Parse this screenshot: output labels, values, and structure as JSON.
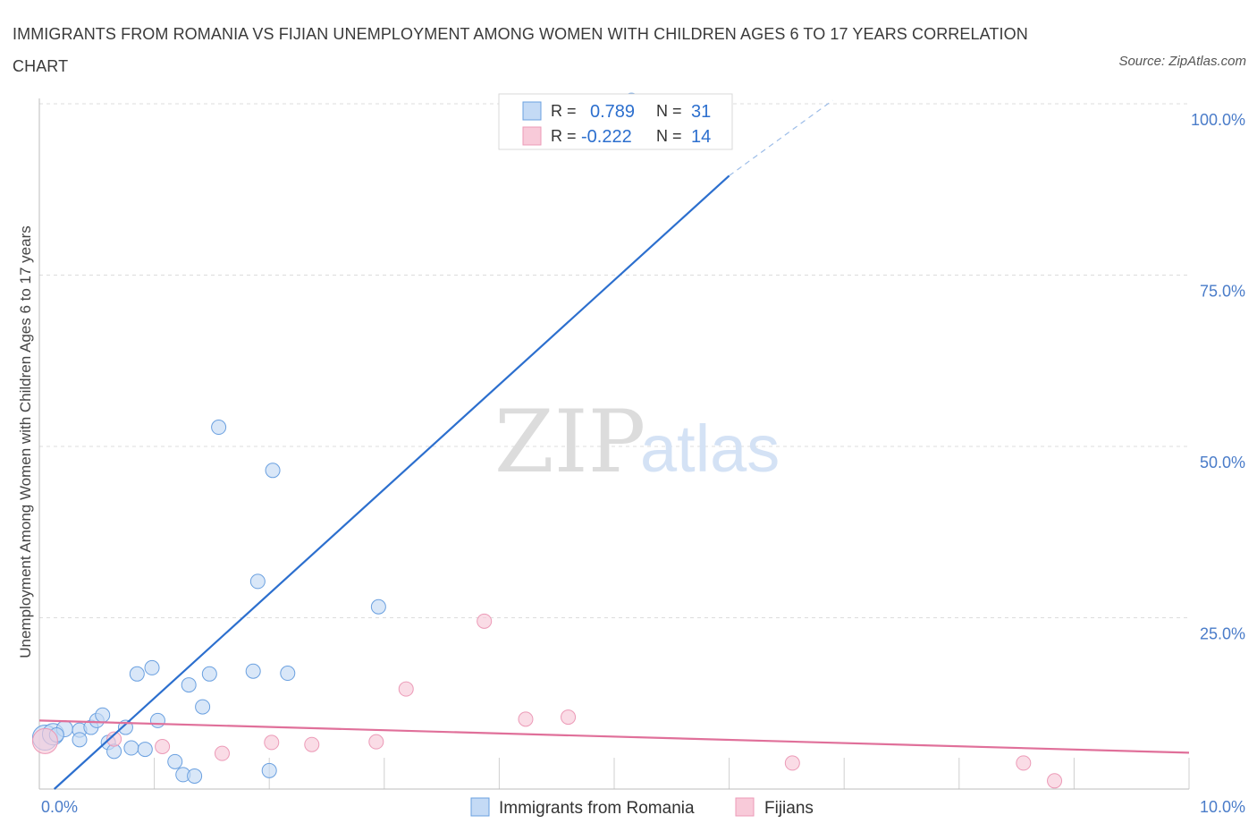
{
  "chart_data": {
    "type": "scatter",
    "title": "IMMIGRANTS FROM ROMANIA VS FIJIAN UNEMPLOYMENT AMONG WOMEN WITH CHILDREN AGES 6 TO 17 YEARS CORRELATION CHART",
    "source": "Source: ZipAtlas.com",
    "ylabel": "Unemployment Among Women with Children Ages 6 to 17 years",
    "xlim": [
      0,
      10
    ],
    "ylim": [
      0,
      100
    ],
    "x_tick_labels": [
      "0.0%",
      "10.0%"
    ],
    "y_ticks": [
      {
        "value": 25,
        "label": "25.0%"
      },
      {
        "value": 50,
        "label": "50.0%"
      },
      {
        "value": 75,
        "label": "75.0%"
      },
      {
        "value": 100,
        "label": "100.0%"
      }
    ],
    "legend": {
      "position": "top-center",
      "r_label": "R =",
      "n_label": "N =",
      "entries": [
        {
          "r": "0.789",
          "n": "31"
        },
        {
          "r": "-0.222",
          "n": "14"
        }
      ]
    },
    "series": [
      {
        "name": "Immigrants from Romania",
        "color": "#6aa0e0",
        "fill": "#c4daf5",
        "line_color": "#2c6fce",
        "trend": {
          "x0": 0.13,
          "y0": 0,
          "x1": 6.0,
          "y1": 89.5,
          "dash_to_x": 6.9,
          "dash_to_y": 100.5
        },
        "points": [
          {
            "x": 0.05,
            "y": 7.5,
            "s": 14
          },
          {
            "x": 0.12,
            "y": 8.0,
            "s": 12
          },
          {
            "x": 0.22,
            "y": 8.8,
            "s": 9
          },
          {
            "x": 0.35,
            "y": 8.6,
            "s": 8
          },
          {
            "x": 0.35,
            "y": 7.2,
            "s": 8
          },
          {
            "x": 0.45,
            "y": 9.0,
            "s": 8
          },
          {
            "x": 0.5,
            "y": 10.0,
            "s": 8
          },
          {
            "x": 0.55,
            "y": 10.8,
            "s": 8
          },
          {
            "x": 0.6,
            "y": 6.8,
            "s": 8
          },
          {
            "x": 0.65,
            "y": 5.5,
            "s": 8
          },
          {
            "x": 0.75,
            "y": 9.0,
            "s": 8
          },
          {
            "x": 0.8,
            "y": 6.0,
            "s": 8
          },
          {
            "x": 0.85,
            "y": 16.8,
            "s": 8
          },
          {
            "x": 0.92,
            "y": 5.8,
            "s": 8
          },
          {
            "x": 0.98,
            "y": 17.7,
            "s": 8
          },
          {
            "x": 1.03,
            "y": 10.0,
            "s": 8
          },
          {
            "x": 1.18,
            "y": 4.0,
            "s": 8
          },
          {
            "x": 1.25,
            "y": 2.1,
            "s": 8
          },
          {
            "x": 1.3,
            "y": 15.2,
            "s": 8
          },
          {
            "x": 1.35,
            "y": 1.9,
            "s": 8
          },
          {
            "x": 1.42,
            "y": 12.0,
            "s": 8
          },
          {
            "x": 1.48,
            "y": 16.8,
            "s": 8
          },
          {
            "x": 1.56,
            "y": 52.8,
            "s": 8
          },
          {
            "x": 1.86,
            "y": 17.2,
            "s": 8
          },
          {
            "x": 1.9,
            "y": 30.3,
            "s": 8
          },
          {
            "x": 2.0,
            "y": 2.7,
            "s": 8
          },
          {
            "x": 2.03,
            "y": 46.5,
            "s": 8
          },
          {
            "x": 2.16,
            "y": 16.9,
            "s": 8
          },
          {
            "x": 2.95,
            "y": 26.6,
            "s": 8
          },
          {
            "x": 5.15,
            "y": 100.5,
            "s": 8
          },
          {
            "x": 0.15,
            "y": 7.9,
            "s": 8
          }
        ]
      },
      {
        "name": "Fijians",
        "color": "#ec9ab7",
        "fill": "#f8cad9",
        "line_color": "#e0709a",
        "trend": {
          "x0": 0.0,
          "y0": 10.0,
          "x1": 10.0,
          "y1": 5.3
        },
        "points": [
          {
            "x": 0.05,
            "y": 7.0,
            "s": 14
          },
          {
            "x": 0.65,
            "y": 7.3,
            "s": 8
          },
          {
            "x": 1.07,
            "y": 6.2,
            "s": 8
          },
          {
            "x": 1.59,
            "y": 5.2,
            "s": 8
          },
          {
            "x": 2.02,
            "y": 6.8,
            "s": 8
          },
          {
            "x": 2.37,
            "y": 6.5,
            "s": 8
          },
          {
            "x": 2.93,
            "y": 6.9,
            "s": 8
          },
          {
            "x": 3.19,
            "y": 14.6,
            "s": 8
          },
          {
            "x": 3.87,
            "y": 24.5,
            "s": 8
          },
          {
            "x": 4.23,
            "y": 10.2,
            "s": 8
          },
          {
            "x": 4.6,
            "y": 10.5,
            "s": 8
          },
          {
            "x": 6.55,
            "y": 3.8,
            "s": 8
          },
          {
            "x": 8.56,
            "y": 3.8,
            "s": 8
          },
          {
            "x": 8.83,
            "y": 1.2,
            "s": 8
          }
        ]
      }
    ]
  },
  "watermark": {
    "zip": "ZIP",
    "atlas": "atlas"
  }
}
